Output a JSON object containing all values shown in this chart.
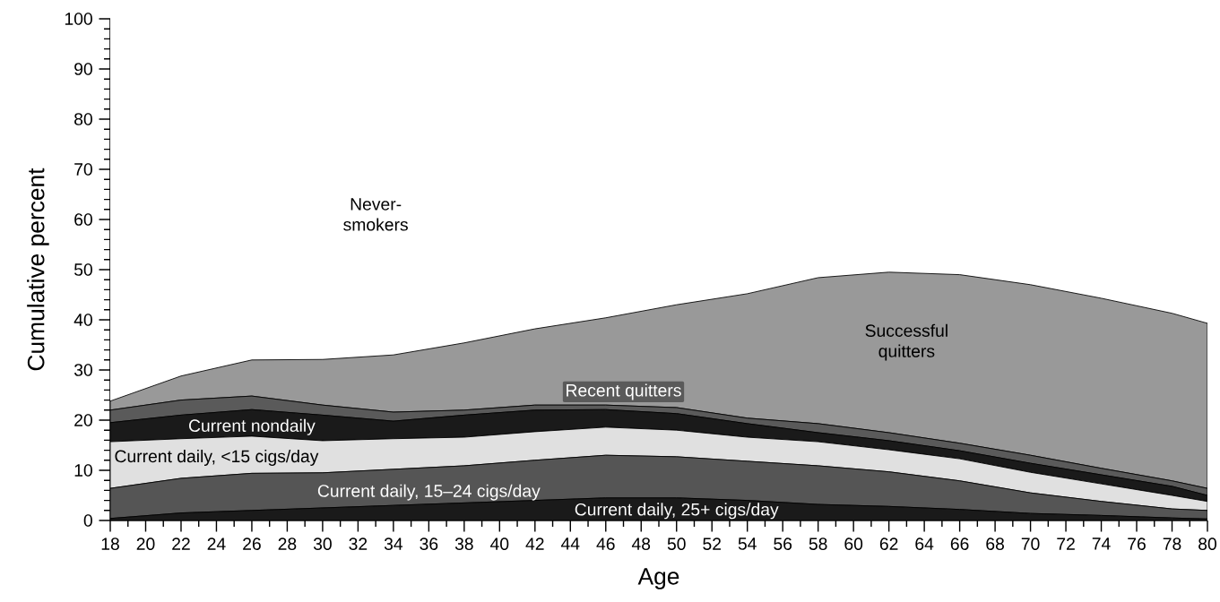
{
  "chart_data": {
    "type": "area",
    "stacked": true,
    "xlabel": "Age",
    "ylabel": "Cumulative percent",
    "x": [
      18,
      22,
      26,
      30,
      34,
      38,
      42,
      46,
      50,
      54,
      58,
      62,
      66,
      70,
      74,
      78,
      80
    ],
    "xlim": [
      18,
      80
    ],
    "ylim": [
      0,
      100
    ],
    "xticks": [
      18,
      20,
      22,
      24,
      26,
      28,
      30,
      32,
      34,
      36,
      38,
      40,
      42,
      44,
      46,
      48,
      50,
      52,
      54,
      56,
      58,
      60,
      62,
      64,
      66,
      68,
      70,
      72,
      74,
      76,
      78,
      80
    ],
    "yticks": [
      0,
      10,
      20,
      30,
      40,
      50,
      60,
      70,
      80,
      90,
      100
    ],
    "series": [
      {
        "name": "Current daily, 25+ cigs/day",
        "color": "#1a1a1a",
        "values": [
          0.4,
          1.5,
          2,
          2.5,
          3,
          3.5,
          4,
          4.5,
          4.5,
          4,
          3.2,
          2.8,
          2.2,
          1.4,
          1,
          0.5,
          0.3
        ]
      },
      {
        "name": "Current daily, 15–24 cigs/day",
        "color": "#555555",
        "values": [
          6.0,
          6.9,
          7.4,
          7.0,
          7.2,
          7.4,
          8.0,
          8.5,
          8.2,
          7.8,
          7.7,
          6.9,
          5.7,
          4.1,
          2.8,
          1.8,
          1.7
        ]
      },
      {
        "name": "Current daily, <15 cigs/day",
        "color": "#e0e0e0",
        "values": [
          9.3,
          7.9,
          7.4,
          6.4,
          6.1,
          5.7,
          5.7,
          5.6,
          5.3,
          4.8,
          4.8,
          4.4,
          4.4,
          4.1,
          3.5,
          2.7,
          1.8
        ]
      },
      {
        "name": "Current nondaily",
        "color": "#1a1a1a",
        "values": [
          3.8,
          4.7,
          5.3,
          5.1,
          3.5,
          4.4,
          4.3,
          3.5,
          3.3,
          2.7,
          1.8,
          1.8,
          1.6,
          1.8,
          1.8,
          1.8,
          1.2
        ]
      },
      {
        "name": "Recent quitters",
        "color": "#5a5a5a",
        "values": [
          2.5,
          3.0,
          2.7,
          2.0,
          1.8,
          1.0,
          1.0,
          0.9,
          1.2,
          1.1,
          1.8,
          1.6,
          1.5,
          1.6,
          1.3,
          1.1,
          1.4
        ]
      },
      {
        "name": "Successful quitters",
        "color": "#999999",
        "values": [
          1.8,
          4.8,
          7.2,
          9.1,
          11.4,
          13.4,
          15.2,
          17.4,
          20.5,
          24.8,
          29.1,
          32.0,
          33.6,
          34.0,
          33.9,
          33.4,
          32.9
        ]
      },
      {
        "name": "Never-smokers",
        "color": "#ffffff",
        "values": [
          76.2,
          71.2,
          68,
          67.9,
          67,
          64.6,
          61.8,
          59.6,
          57,
          54.8,
          51.6,
          50.5,
          51,
          53,
          55.7,
          58.7,
          60.7
        ]
      }
    ]
  }
}
